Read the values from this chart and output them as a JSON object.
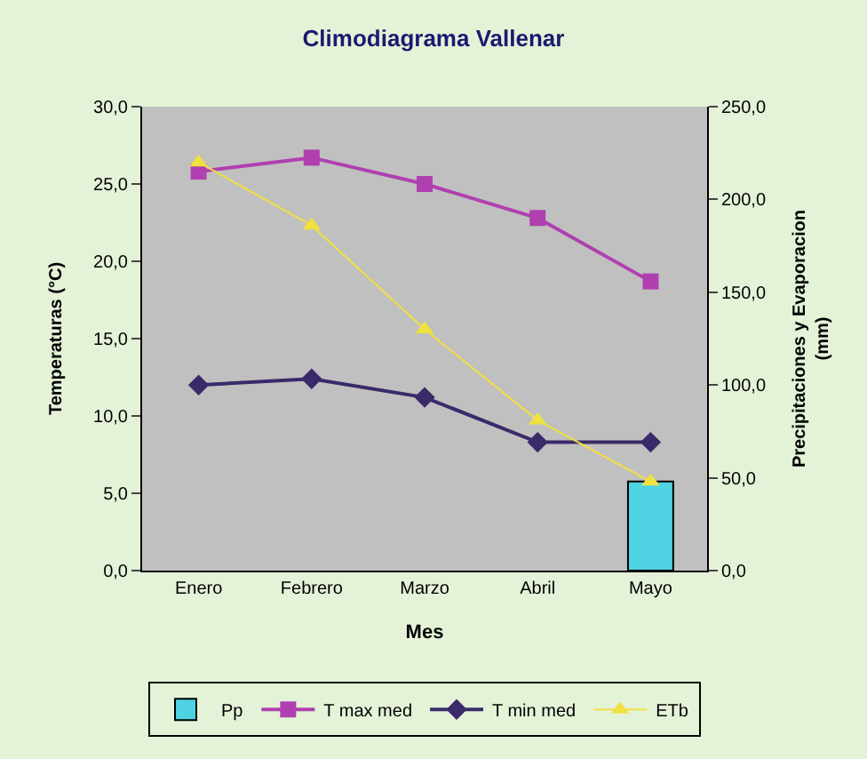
{
  "chart_data": {
    "type": "line",
    "title": "Climodiagrama Vallenar",
    "xlabel": "Mes",
    "ylabel": "Temperaturas (°C)",
    "y2label": "Precipitaciones y Evaporacion (mm)",
    "categories": [
      "Enero",
      "Febrero",
      "Marzo",
      "Abril",
      "Mayo"
    ],
    "series": [
      {
        "name": "Pp",
        "type": "bar",
        "axis": "y2",
        "color": "#4fd3e3",
        "values": [
          null,
          null,
          null,
          null,
          48
        ]
      },
      {
        "name": "T max med",
        "color": "#b040b0",
        "marker": "square",
        "values": [
          25.8,
          26.7,
          25.0,
          22.8,
          18.7
        ]
      },
      {
        "name": "T min med",
        "color": "#3a2a6a",
        "marker": "diamond",
        "values": [
          12.0,
          12.4,
          11.2,
          8.3,
          8.3
        ]
      },
      {
        "name": "ETb",
        "axis": "y2",
        "color": "#f0e040",
        "marker": "triangle",
        "values": [
          220,
          186,
          130,
          81,
          48
        ]
      }
    ],
    "ylim": [
      0,
      30
    ],
    "yticks": [
      {
        "value": 0,
        "label": "0,0"
      },
      {
        "value": 5,
        "label": "5,0"
      },
      {
        "value": 10,
        "label": "10,0"
      },
      {
        "value": 15,
        "label": "15,0"
      },
      {
        "value": 20,
        "label": "20,0"
      },
      {
        "value": 25,
        "label": "25,0"
      },
      {
        "value": 30,
        "label": "30,0"
      }
    ],
    "y2lim": [
      0,
      250
    ],
    "y2ticks": [
      {
        "value": 0,
        "label": "0,0"
      },
      {
        "value": 50,
        "label": "50,0"
      },
      {
        "value": 100,
        "label": "100,0"
      },
      {
        "value": 150,
        "label": "150,0"
      },
      {
        "value": 200,
        "label": "200,0"
      },
      {
        "value": 250,
        "label": "250,0"
      }
    ],
    "grid": false,
    "legend": "bottom"
  }
}
